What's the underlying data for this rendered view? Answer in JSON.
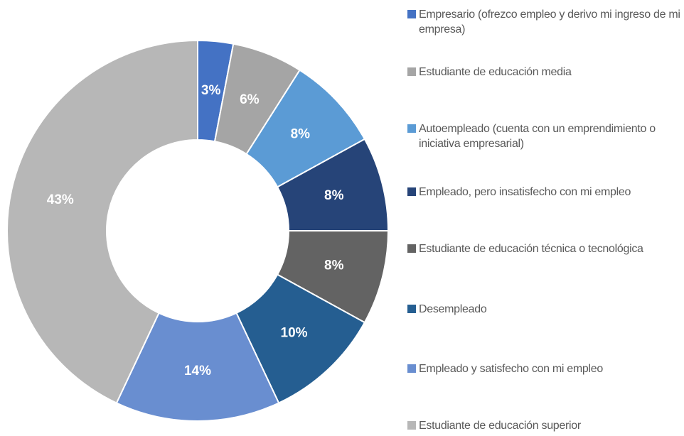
{
  "chart_data": {
    "type": "donut",
    "categories": [
      "Empresario (ofrezco empleo y derivo mi ingreso de mi empresa)",
      "Estudiante de educación media",
      "Autoempleado (cuenta con un emprendimiento o iniciativa empresarial)",
      "Empleado, pero insatisfecho con mi empleo",
      "Estudiante de educación técnica o tecnológica",
      "Desempleado",
      "Empleado y satisfecho con mi empleo",
      "Estudiante de educación superior"
    ],
    "values": [
      3,
      6,
      8,
      8,
      8,
      10,
      14,
      43
    ],
    "value_labels": [
      "3%",
      "6%",
      "8%",
      "8%",
      "8%",
      "10%",
      "14%",
      "43%"
    ],
    "colors": [
      "#4472c4",
      "#a5a5a5",
      "#5b9bd5",
      "#264478",
      "#636363",
      "#255e91",
      "#698ed0",
      "#b7b7b7"
    ],
    "legend": "right"
  }
}
